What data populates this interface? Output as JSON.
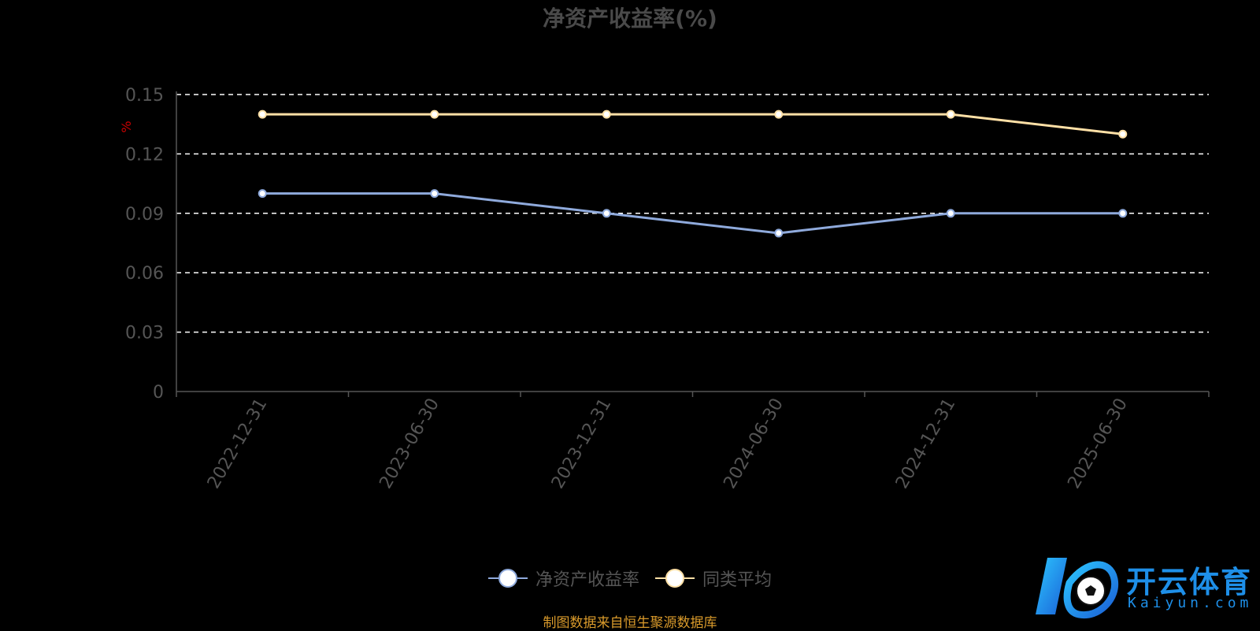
{
  "chart_data": {
    "type": "line",
    "title": "净资产收益率(%)",
    "ylabel": "%",
    "xlabel": "",
    "categories": [
      "2022-12-31",
      "2023-06-30",
      "2023-12-31",
      "2024-06-30",
      "2024-12-31",
      "2025-06-30"
    ],
    "series": [
      {
        "name": "净资产收益率",
        "values": [
          0.1,
          0.1,
          0.09,
          0.08,
          0.09,
          0.09
        ],
        "color": "#8faadc"
      },
      {
        "name": "同类平均",
        "values": [
          0.14,
          0.14,
          0.14,
          0.14,
          0.14,
          0.13
        ],
        "color": "#ffe0a6"
      }
    ],
    "ylim": [
      0,
      0.15
    ],
    "yticks": [
      "0",
      "0.03",
      "0.06",
      "0.09",
      "0.12",
      "0.15"
    ],
    "grid": true,
    "legend_position": "bottom"
  },
  "source_note": "制图数据来自恒生聚源数据库",
  "watermark": {
    "brand": "开云体育",
    "domain": "Kaiyun.com"
  },
  "colors": {
    "axis_label": "#555555",
    "ylabel": "#cc0000",
    "grid": "#ffffff",
    "source": "#d99a2b",
    "logo": "#1e8fe8"
  }
}
